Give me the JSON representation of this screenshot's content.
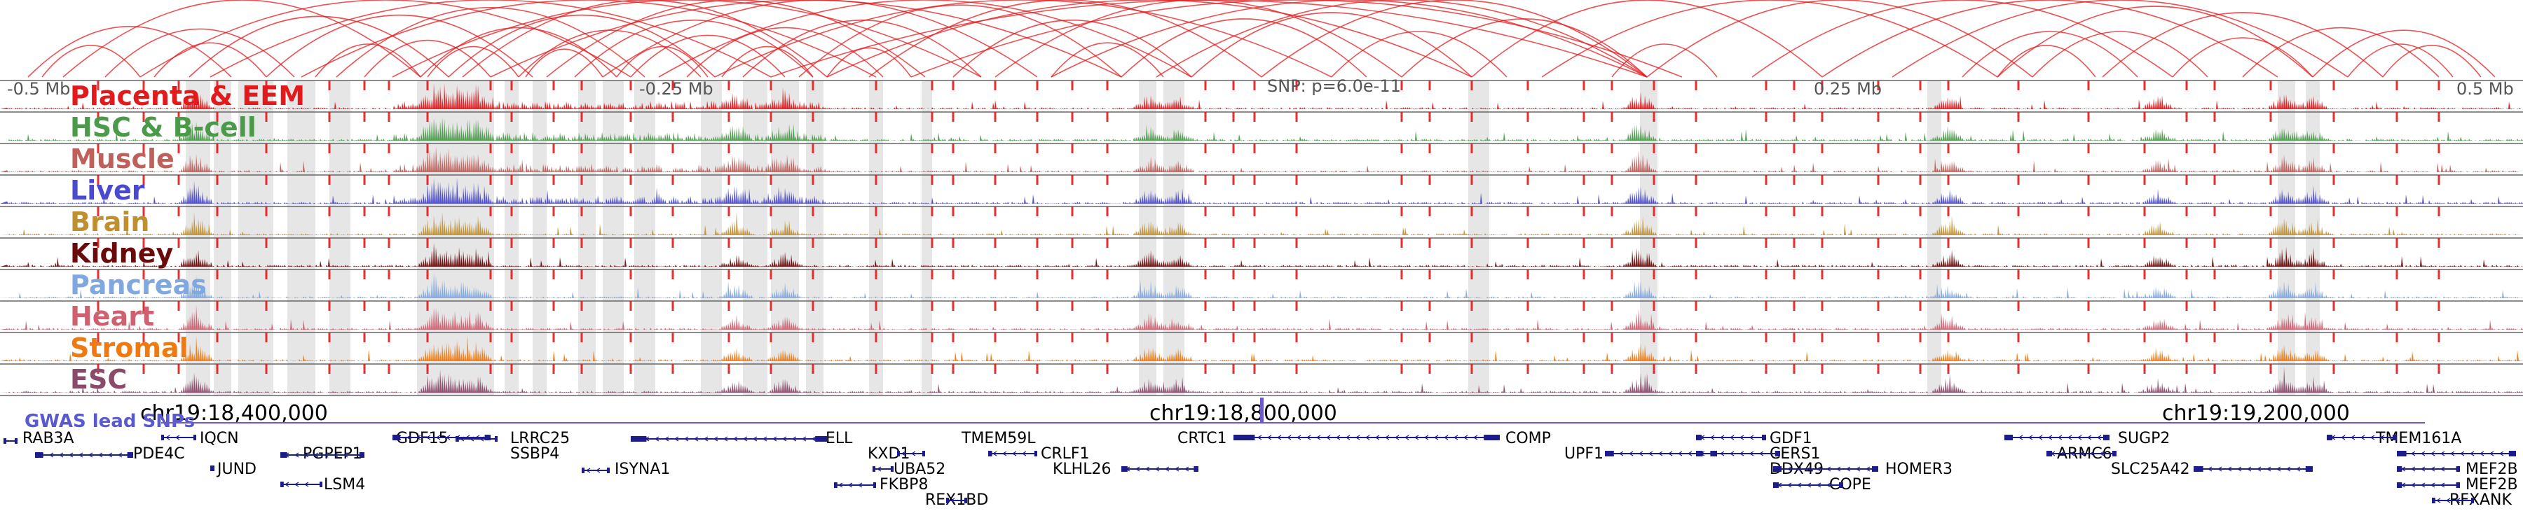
{
  "colors": {
    "loops": "#e31a1c",
    "highlight": "#e0e0e0",
    "separator": "#666666",
    "peak_marker": "#e31a1c",
    "gene": "#1c1c8c",
    "gwas": "#6a5acd"
  },
  "ruler": {
    "left_label": "-0.5 Mb",
    "mid_left_label": "-0.25 Mb",
    "snp_label": "SNP: p=6.0e-11",
    "mid_right_label": "0.25 Mb",
    "right_label": "0.5 Mb"
  },
  "tracks": [
    {
      "name": "Placenta & EEM",
      "color": "#e31a1c"
    },
    {
      "name": "HSC & B-cell",
      "color": "#4a9a4a"
    },
    {
      "name": "Muscle",
      "color": "#c0605a"
    },
    {
      "name": "Liver",
      "color": "#4a4ad0"
    },
    {
      "name": "Brain",
      "color": "#c09030"
    },
    {
      "name": "Kidney",
      "color": "#6a0a0a"
    },
    {
      "name": "Pancreas",
      "color": "#80a8e0"
    },
    {
      "name": "Heart",
      "color": "#d06070"
    },
    {
      "name": "Stromal",
      "color": "#f07a10"
    },
    {
      "name": "ESC",
      "color": "#8a4a6a"
    }
  ],
  "coordinates": [
    "chr19:18,400,000",
    "chr19:18,800,000",
    "chr19:19,200,000"
  ],
  "gwas_label": "GWAS lead SNPs",
  "genes": [
    {
      "name": "RAB3A"
    },
    {
      "name": "PDE4C"
    },
    {
      "name": "IQCN"
    },
    {
      "name": "JUND"
    },
    {
      "name": "PGPEP1"
    },
    {
      "name": "LSM4"
    },
    {
      "name": "GDF15"
    },
    {
      "name": "LRRC25"
    },
    {
      "name": "SSBP4"
    },
    {
      "name": "ISYNA1"
    },
    {
      "name": "ELL"
    },
    {
      "name": "KXD1"
    },
    {
      "name": "FKBP8"
    },
    {
      "name": "UBA52"
    },
    {
      "name": "REX1BD"
    },
    {
      "name": "TMEM59L"
    },
    {
      "name": "CRLF1"
    },
    {
      "name": "KLHL26"
    },
    {
      "name": "CRTC1"
    },
    {
      "name": "COMP"
    },
    {
      "name": "UPF1"
    },
    {
      "name": "GDF1"
    },
    {
      "name": "CERS1"
    },
    {
      "name": "DDX49"
    },
    {
      "name": "COPE"
    },
    {
      "name": "HOMER3"
    },
    {
      "name": "SUGP2"
    },
    {
      "name": "ARMC6"
    },
    {
      "name": "SLC25A42"
    },
    {
      "name": "TMEM161A"
    },
    {
      "name": "MEF2B"
    },
    {
      "name": "MEF2B"
    },
    {
      "name": "RFXANK"
    }
  ]
}
